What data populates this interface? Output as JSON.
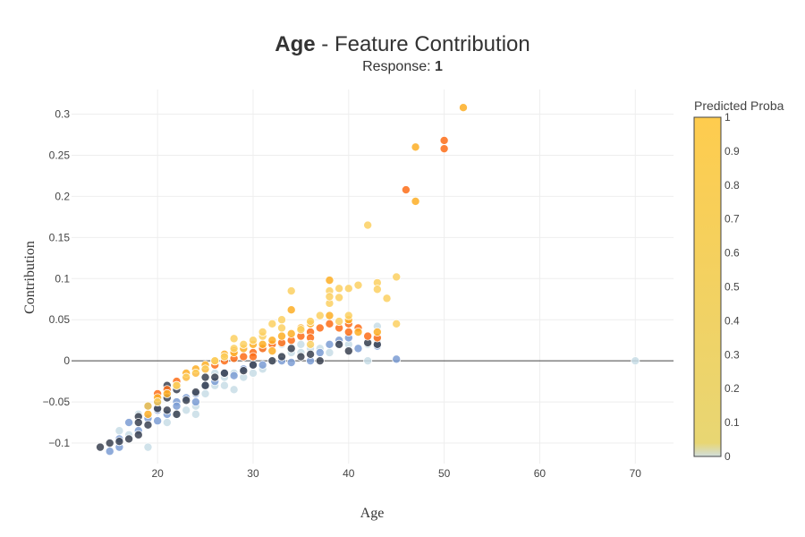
{
  "title": {
    "bold": "Age",
    "rest": " - Feature Contribution"
  },
  "subtitle": {
    "prefix": "Response: ",
    "value": "1"
  },
  "colorbar": {
    "title": "Predicted Proba",
    "ticks": [
      "0",
      "0.1",
      "0.2",
      "0.3",
      "0.4",
      "0.5",
      "0.6",
      "0.7",
      "0.8",
      "0.9",
      "1"
    ],
    "colorscale": [
      "#d1dedd",
      "#e8d673",
      "#fecc4e"
    ]
  },
  "colors": {
    "light": "#c8dde6",
    "steel": "#7b9cd3",
    "dark": "#3a4150",
    "orange": "#fd6d18",
    "amber": "#fdae25",
    "yellow": "#fcd062"
  },
  "chart_data": {
    "type": "scatter",
    "xlabel": "Age",
    "ylabel": "Contribution",
    "xlim": [
      11,
      74
    ],
    "ylim": [
      -0.125,
      0.33
    ],
    "xticks": [
      20,
      30,
      40,
      50,
      60,
      70
    ],
    "yticks": [
      -0.1,
      -0.05,
      0,
      0.05,
      0.1,
      0.15,
      0.2,
      0.25,
      0.3
    ],
    "ytick_labels": [
      "−0.1",
      "−0.05",
      "0",
      "0.05",
      "0.1",
      "0.15",
      "0.2",
      "0.25",
      "0.3"
    ],
    "zero_line": true,
    "grid": true,
    "series": [
      {
        "color_key": "light",
        "points": [
          [
            19,
            -0.105
          ],
          [
            21,
            -0.075
          ],
          [
            22,
            -0.065
          ],
          [
            23,
            -0.06
          ],
          [
            24,
            -0.065
          ],
          [
            24,
            -0.055
          ],
          [
            25,
            -0.04
          ],
          [
            26,
            -0.03
          ],
          [
            27,
            -0.03
          ],
          [
            28,
            -0.035
          ],
          [
            28,
            -0.015
          ],
          [
            29,
            -0.02
          ],
          [
            30,
            -0.015
          ],
          [
            31,
            -0.01
          ],
          [
            32,
            0
          ],
          [
            33,
            0.005
          ],
          [
            34,
            0.01
          ],
          [
            35,
            0.01
          ],
          [
            36,
            0.015
          ],
          [
            38,
            0.01
          ],
          [
            39,
            0.02
          ],
          [
            40,
            0.02
          ],
          [
            42,
            0.0
          ],
          [
            42,
            0.02
          ],
          [
            43,
            0.025
          ],
          [
            43,
            0.042
          ],
          [
            70,
            0
          ],
          [
            16,
            -0.085
          ],
          [
            18,
            -0.065
          ],
          [
            17,
            -0.09
          ],
          [
            26,
            -0.015
          ],
          [
            27,
            -0.02
          ],
          [
            31,
            0.015
          ],
          [
            33,
            0.02
          ],
          [
            35,
            0.02
          ],
          [
            37,
            0.015
          ]
        ]
      },
      {
        "color_key": "steel",
        "points": [
          [
            15,
            -0.11
          ],
          [
            16,
            -0.105
          ],
          [
            16,
            -0.095
          ],
          [
            17,
            -0.075
          ],
          [
            18,
            -0.085
          ],
          [
            19,
            -0.07
          ],
          [
            20,
            -0.073
          ],
          [
            21,
            -0.065
          ],
          [
            22,
            -0.05
          ],
          [
            22,
            -0.055
          ],
          [
            23,
            -0.045
          ],
          [
            24,
            -0.04
          ],
          [
            25,
            -0.03
          ],
          [
            26,
            -0.025
          ],
          [
            27,
            -0.015
          ],
          [
            28,
            -0.018
          ],
          [
            29,
            -0.01
          ],
          [
            30,
            -0.005
          ],
          [
            31,
            -0.005
          ],
          [
            33,
            0
          ],
          [
            34,
            -0.002
          ],
          [
            36,
            0
          ],
          [
            37,
            0.01
          ],
          [
            38,
            0.02
          ],
          [
            39,
            0.025
          ],
          [
            40,
            0.028
          ],
          [
            41,
            0.015
          ],
          [
            43,
            0.018
          ],
          [
            45,
            0.002
          ],
          [
            20,
            -0.06
          ],
          [
            24,
            -0.05
          ]
        ]
      },
      {
        "color_key": "dark",
        "points": [
          [
            14,
            -0.105
          ],
          [
            15,
            -0.1
          ],
          [
            16,
            -0.098
          ],
          [
            17,
            -0.095
          ],
          [
            18,
            -0.09
          ],
          [
            18,
            -0.068
          ],
          [
            19,
            -0.078
          ],
          [
            19,
            -0.055
          ],
          [
            20,
            -0.058
          ],
          [
            20,
            -0.05
          ],
          [
            21,
            -0.045
          ],
          [
            21,
            -0.03
          ],
          [
            22,
            -0.035
          ],
          [
            23,
            -0.048
          ],
          [
            24,
            -0.038
          ],
          [
            25,
            -0.03
          ],
          [
            26,
            -0.02
          ],
          [
            27,
            -0.015
          ],
          [
            29,
            -0.012
          ],
          [
            30,
            -0.005
          ],
          [
            32,
            0.0
          ],
          [
            33,
            0.005
          ],
          [
            35,
            0.005
          ],
          [
            36,
            0.008
          ],
          [
            37,
            0.0
          ],
          [
            39,
            0.02
          ],
          [
            40,
            0.012
          ],
          [
            42,
            0.022
          ],
          [
            43,
            0.02
          ],
          [
            18,
            -0.075
          ],
          [
            22,
            -0.065
          ],
          [
            21,
            -0.06
          ],
          [
            25,
            -0.02
          ],
          [
            34,
            0.015
          ]
        ]
      },
      {
        "color_key": "orange",
        "points": [
          [
            20,
            -0.04
          ],
          [
            21,
            -0.035
          ],
          [
            22,
            -0.025
          ],
          [
            23,
            -0.02
          ],
          [
            24,
            -0.015
          ],
          [
            25,
            -0.01
          ],
          [
            26,
            -0.005
          ],
          [
            27,
            0.0
          ],
          [
            28,
            0.003
          ],
          [
            29,
            0.005
          ],
          [
            30,
            0.01
          ],
          [
            31,
            0.015
          ],
          [
            32,
            0.02
          ],
          [
            33,
            0.022
          ],
          [
            34,
            0.025
          ],
          [
            35,
            0.03
          ],
          [
            36,
            0.035
          ],
          [
            37,
            0.04
          ],
          [
            38,
            0.045
          ],
          [
            39,
            0.04
          ],
          [
            40,
            0.045
          ],
          [
            41,
            0.04
          ],
          [
            42,
            0.03
          ],
          [
            43,
            0.028
          ],
          [
            46,
            0.208
          ],
          [
            50,
            0.268
          ],
          [
            50,
            0.258
          ],
          [
            30,
            0.005
          ],
          [
            28,
            0.012
          ],
          [
            36,
            0.028
          ],
          [
            40,
            0.035
          ]
        ]
      },
      {
        "color_key": "amber",
        "points": [
          [
            19,
            -0.065
          ],
          [
            20,
            -0.045
          ],
          [
            21,
            -0.04
          ],
          [
            22,
            -0.03
          ],
          [
            23,
            -0.015
          ],
          [
            24,
            -0.01
          ],
          [
            25,
            -0.005
          ],
          [
            26,
            0.0
          ],
          [
            27,
            0.005
          ],
          [
            28,
            0.01
          ],
          [
            29,
            0.015
          ],
          [
            30,
            0.02
          ],
          [
            31,
            0.02
          ],
          [
            32,
            0.025
          ],
          [
            33,
            0.03
          ],
          [
            34,
            0.033
          ],
          [
            35,
            0.04
          ],
          [
            36,
            0.045
          ],
          [
            38,
            0.055
          ],
          [
            40,
            0.05
          ],
          [
            41,
            0.035
          ],
          [
            43,
            0.035
          ],
          [
            47,
            0.194
          ],
          [
            47,
            0.26
          ],
          [
            52,
            0.308
          ],
          [
            38,
            0.098
          ],
          [
            34,
            0.062
          ],
          [
            32,
            0.012
          ],
          [
            27,
            0.008
          ]
        ]
      },
      {
        "color_key": "yellow",
        "points": [
          [
            19,
            -0.055
          ],
          [
            20,
            -0.05
          ],
          [
            22,
            -0.03
          ],
          [
            23,
            -0.02
          ],
          [
            24,
            -0.015
          ],
          [
            25,
            -0.01
          ],
          [
            26,
            0.0
          ],
          [
            27,
            0.005
          ],
          [
            28,
            0.015
          ],
          [
            28,
            0.027
          ],
          [
            29,
            0.02
          ],
          [
            30,
            0.025
          ],
          [
            31,
            0.03
          ],
          [
            31,
            0.035
          ],
          [
            32,
            0.045
          ],
          [
            33,
            0.05
          ],
          [
            33,
            0.04
          ],
          [
            34,
            0.085
          ],
          [
            35,
            0.038
          ],
          [
            36,
            0.048
          ],
          [
            37,
            0.055
          ],
          [
            38,
            0.07
          ],
          [
            38,
            0.085
          ],
          [
            38,
            0.078
          ],
          [
            39,
            0.088
          ],
          [
            39,
            0.077
          ],
          [
            40,
            0.088
          ],
          [
            40,
            0.055
          ],
          [
            41,
            0.092
          ],
          [
            42,
            0.165
          ],
          [
            43,
            0.095
          ],
          [
            43,
            0.087
          ],
          [
            44,
            0.076
          ],
          [
            45,
            0.102
          ],
          [
            45,
            0.045
          ],
          [
            39,
            0.048
          ],
          [
            36,
            0.02
          ]
        ]
      }
    ]
  }
}
